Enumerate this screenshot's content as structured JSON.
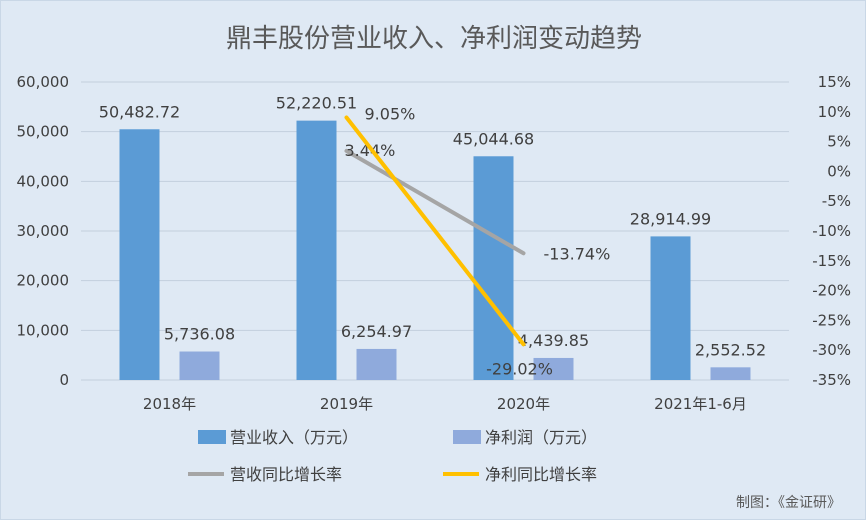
{
  "chart_data": {
    "type": "bar",
    "title": "鼎丰股份营业收入、净利润变动趋势",
    "categories": [
      "2018年",
      "2019年",
      "2020年",
      "2021年1-6月"
    ],
    "series": [
      {
        "name": "营业收入（万元）",
        "kind": "bar",
        "axis": "left",
        "color": "#5b9bd5",
        "values": [
          50482.72,
          52220.51,
          45044.68,
          28914.99
        ],
        "labels": [
          "50,482.72",
          "52,220.51",
          "45,044.68",
          "28,914.99"
        ]
      },
      {
        "name": "净利润（万元）",
        "kind": "bar",
        "axis": "left",
        "color": "#8faadc",
        "values": [
          5736.08,
          6254.97,
          4439.85,
          2552.52
        ],
        "labels": [
          "5,736.08",
          "6,254.97",
          "4,439.85",
          "2,552.52"
        ]
      },
      {
        "name": "营收同比增长率",
        "kind": "line",
        "axis": "right",
        "color": "#a5a5a5",
        "points": [
          {
            "category": "2019年",
            "value": 3.44,
            "label": "3.44%"
          },
          {
            "category": "2020年",
            "value": -13.74,
            "label": "-13.74%"
          }
        ]
      },
      {
        "name": "净利同比增长率",
        "kind": "line",
        "axis": "right",
        "color": "#ffc000",
        "points": [
          {
            "category": "2019年",
            "value": 9.05,
            "label": "9.05%"
          },
          {
            "category": "2020年",
            "value": -29.02,
            "label": "-29.02%"
          }
        ]
      }
    ],
    "y_left": {
      "min": 0,
      "max": 60000,
      "step": 10000,
      "tick_labels": [
        "0",
        "10,000",
        "20,000",
        "30,000",
        "40,000",
        "50,000",
        "60,000"
      ]
    },
    "y_right": {
      "min": -35,
      "max": 15,
      "step": 5,
      "tick_labels": [
        "-35%",
        "-30%",
        "-25%",
        "-20%",
        "-15%",
        "-10%",
        "-5%",
        "0%",
        "5%",
        "10%",
        "15%"
      ]
    },
    "grid": true,
    "legend_position": "bottom",
    "source_note": "制图：《金证研》"
  }
}
